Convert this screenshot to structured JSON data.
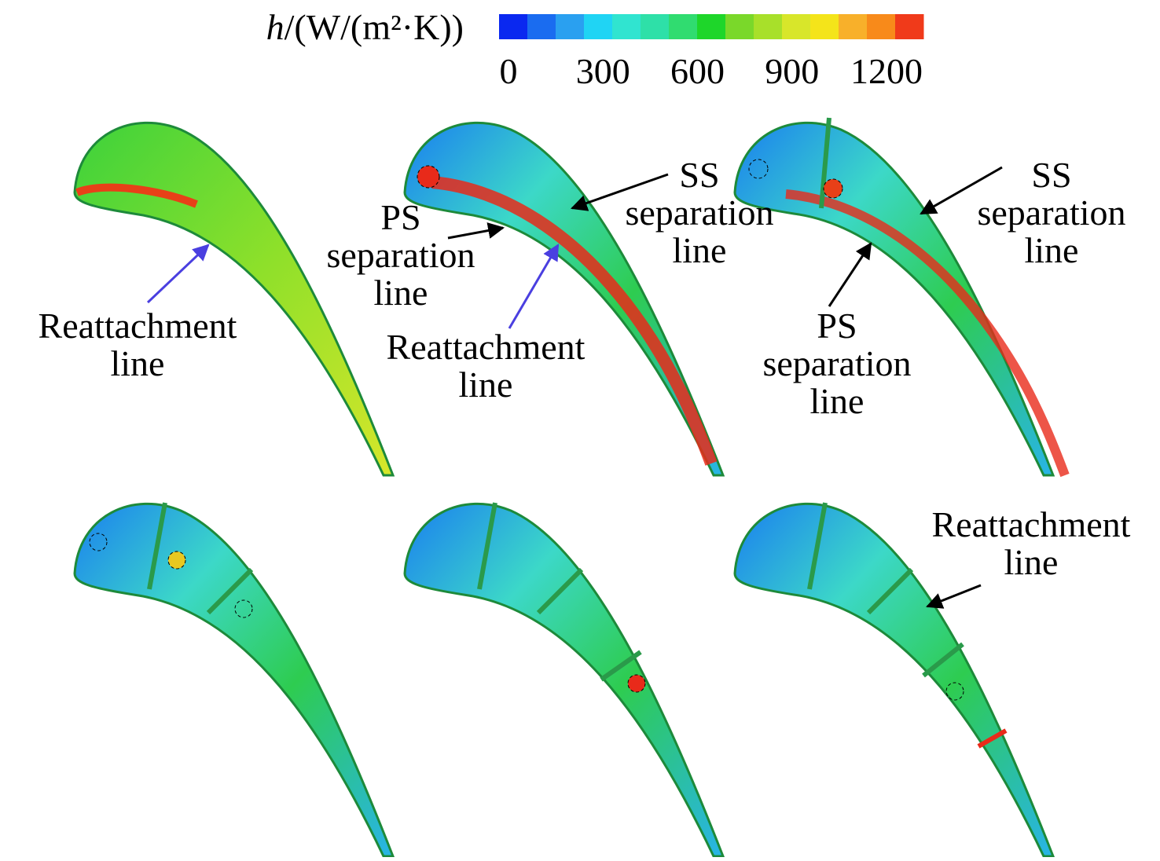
{
  "colorbar": {
    "symbol": "h",
    "unit": "/(W/(m²·K))",
    "ticks": [
      0,
      300,
      600,
      900,
      1200
    ]
  },
  "annotations": [
    {
      "lines": [
        "Reattachment",
        "line"
      ]
    },
    {
      "lines": [
        "PS",
        "separation",
        "line"
      ]
    },
    {
      "lines": [
        "SS",
        "separation",
        "line"
      ]
    },
    {
      "lines": [
        "Reattachment",
        "line"
      ]
    },
    {
      "lines": [
        "SS",
        "separation",
        "line"
      ]
    },
    {
      "lines": [
        "PS",
        "separation",
        "line"
      ]
    },
    {
      "lines": [
        "Reattachment",
        "line"
      ]
    }
  ]
}
